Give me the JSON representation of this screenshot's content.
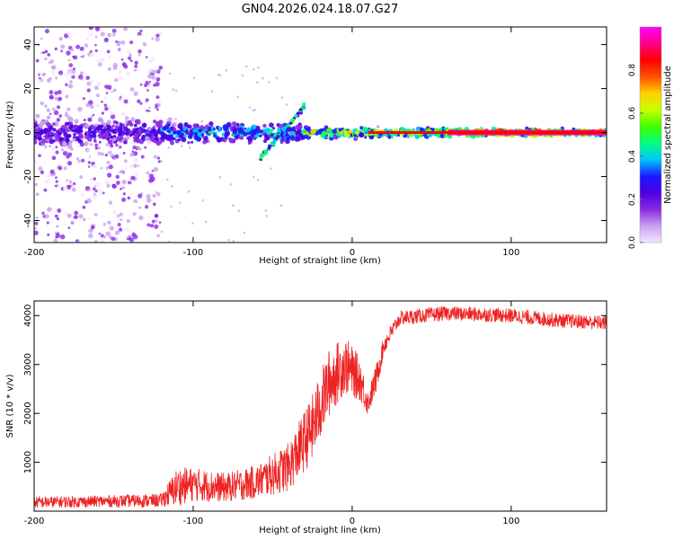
{
  "page_title": "GN04.2026.024.18.07.G27",
  "colors": {
    "snr_line": "#ee2222",
    "axis": "#000000",
    "colormap": [
      "#f4e6ff",
      "#c8a0f0",
      "#8a2be2",
      "#4b00e0",
      "#1a1aff",
      "#00c8ff",
      "#00ff80",
      "#40ff00",
      "#c8ff00",
      "#ffd000",
      "#ff5000",
      "#ff0000",
      "#ff0088",
      "#ff00ff"
    ]
  },
  "chart_data": [
    {
      "type": "heatmap",
      "name": "spectrogram",
      "title": "GN04.2026.024.18.07.G27",
      "xlabel": "Height of straight line (km)",
      "ylabel": "Frequency (Hz)",
      "xlim": [
        -200,
        160
      ],
      "ylim": [
        -50,
        48
      ],
      "x_ticks": [
        -200,
        -100,
        0,
        100
      ],
      "x_tick_labels": [
        "-200",
        "-100",
        "0",
        "100"
      ],
      "y_ticks": [
        -40,
        -20,
        0,
        20,
        40
      ],
      "y_tick_labels": [
        "-40",
        "-20",
        "0",
        "20",
        "40"
      ],
      "colorbar": {
        "label": "Normalized spectral amplitude",
        "range": [
          0,
          1
        ],
        "ticks": [
          0.0,
          0.2,
          0.4,
          0.6,
          0.8
        ],
        "tick_labels": [
          "0.0",
          "0.2",
          "0.4",
          "0.6",
          "0.8"
        ]
      },
      "ridge": {
        "segments": [
          {
            "height_km": [
              -200,
              -120
            ],
            "freq_hz": 0,
            "spread_hz": 6,
            "amplitude": 0.3
          },
          {
            "height_km": [
              -120,
              -30
            ],
            "freq_hz": 0,
            "spread_hz": 4,
            "amplitude": 0.45
          },
          {
            "height_km": [
              -30,
              60
            ],
            "freq_hz": 0,
            "spread_hz": 2,
            "amplitude": 0.7
          },
          {
            "height_km": [
              60,
              160
            ],
            "freq_hz": 0,
            "spread_hz": 1.5,
            "amplitude": 0.95
          }
        ],
        "branch": {
          "height_km": [
            -58,
            -30
          ],
          "freq_hz": [
            -12,
            12
          ]
        }
      },
      "scatter_region": {
        "height_km": [
          -200,
          -120
        ],
        "freq_hz": [
          -50,
          48
        ]
      }
    },
    {
      "type": "line",
      "name": "snr",
      "xlabel": "Height of straight line (km)",
      "ylabel": "SNR (10 * v/v)",
      "xlim": [
        -200,
        160
      ],
      "ylim": [
        0,
        4300
      ],
      "x_ticks": [
        -200,
        -100,
        0,
        100
      ],
      "x_tick_labels": [
        "-200",
        "-100",
        "0",
        "100"
      ],
      "y_ticks": [
        1000,
        2000,
        3000,
        4000
      ],
      "y_tick_labels": [
        "1000",
        "2000",
        "3000",
        "4000"
      ],
      "series": [
        {
          "name": "SNR",
          "trend_x": [
            -200,
            -160,
            -120,
            -110,
            -100,
            -80,
            -60,
            -40,
            -25,
            -15,
            -5,
            5,
            10,
            15,
            20,
            30,
            60,
            100,
            130,
            160
          ],
          "trend_y": [
            180,
            200,
            220,
            500,
            550,
            480,
            600,
            900,
            1700,
            2600,
            3000,
            2700,
            2200,
            2700,
            3400,
            3950,
            4050,
            4000,
            3900,
            3850
          ],
          "noise_y": [
            120,
            120,
            140,
            400,
            350,
            300,
            350,
            500,
            700,
            700,
            600,
            450,
            250,
            300,
            200,
            150,
            150,
            150,
            150,
            150
          ],
          "samples": 1800
        }
      ]
    }
  ]
}
